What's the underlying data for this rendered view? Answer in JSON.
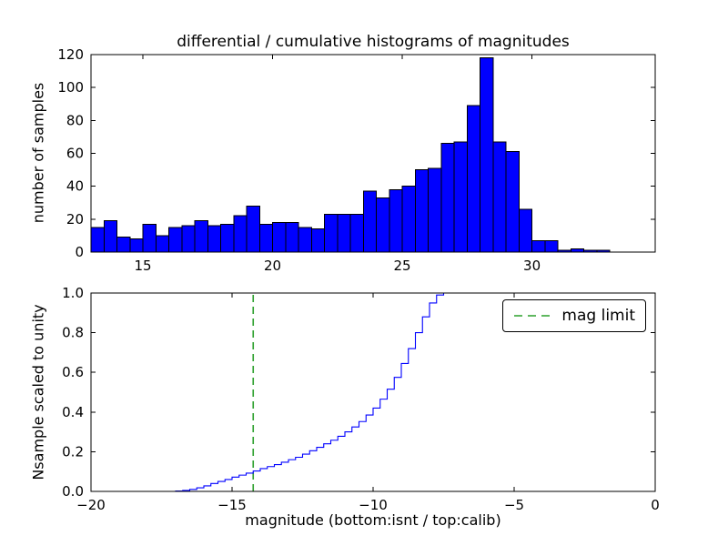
{
  "figure": {
    "background": "#ffffff"
  },
  "chart_data": [
    {
      "type": "bar",
      "name": "differential histogram of magnitudes",
      "title": "differential / cumulative histograms of magnitudes",
      "xlabel": "",
      "ylabel": "number of samples",
      "xlim": [
        13.0,
        34.75
      ],
      "ylim": [
        0,
        120
      ],
      "xticks": [
        15,
        20,
        25,
        30
      ],
      "xtick_labels": [
        "15",
        "20",
        "25",
        "30"
      ],
      "yticks": [
        0,
        20,
        40,
        60,
        80,
        100,
        120
      ],
      "ytick_labels": [
        "0",
        "20",
        "40",
        "60",
        "80",
        "100",
        "120"
      ],
      "grid": false,
      "bar_color": "#0000ff",
      "bar_edge_color": "#000000",
      "bin_start": 13.0,
      "bin_width": 0.5,
      "values": [
        15,
        19,
        9,
        8,
        17,
        10,
        15,
        16,
        19,
        16,
        17,
        22,
        28,
        17,
        18,
        18,
        15,
        14,
        23,
        23,
        23,
        37,
        33,
        38,
        40,
        50,
        51,
        66,
        67,
        89,
        118,
        67,
        61,
        26,
        7,
        7,
        1,
        2,
        1,
        1
      ]
    },
    {
      "type": "line",
      "name": "cumulative histogram scaled to unity",
      "xlabel": "magnitude (bottom:isnt / top:calib)",
      "ylabel": "Nsample scaled to unity",
      "xlim": [
        -20,
        0
      ],
      "ylim": [
        0.0,
        1.0
      ],
      "xticks": [
        -20,
        -15,
        -10,
        -5,
        0
      ],
      "xtick_labels": [
        "−20",
        "−15",
        "−10",
        "−5",
        "0"
      ],
      "yticks": [
        0.0,
        0.2,
        0.4,
        0.6,
        0.8,
        1.0
      ],
      "ytick_labels": [
        "0.0",
        "0.2",
        "0.4",
        "0.6",
        "0.8",
        "1.0"
      ],
      "grid": false,
      "line_color": "#0000ff",
      "line_style": "steps",
      "step_points": [
        [
          -20.0,
          0.0
        ],
        [
          -17.0,
          0.002
        ],
        [
          -16.75,
          0.005
        ],
        [
          -16.5,
          0.01
        ],
        [
          -16.25,
          0.018
        ],
        [
          -16.0,
          0.028
        ],
        [
          -15.75,
          0.04
        ],
        [
          -15.5,
          0.05
        ],
        [
          -15.25,
          0.06
        ],
        [
          -15.0,
          0.072
        ],
        [
          -14.75,
          0.082
        ],
        [
          -14.5,
          0.092
        ],
        [
          -14.25,
          0.103
        ],
        [
          -14.0,
          0.115
        ],
        [
          -13.75,
          0.125
        ],
        [
          -13.5,
          0.135
        ],
        [
          -13.25,
          0.147
        ],
        [
          -13.0,
          0.16
        ],
        [
          -12.75,
          0.172
        ],
        [
          -12.5,
          0.188
        ],
        [
          -12.25,
          0.205
        ],
        [
          -12.0,
          0.222
        ],
        [
          -11.75,
          0.24
        ],
        [
          -11.5,
          0.258
        ],
        [
          -11.25,
          0.278
        ],
        [
          -11.0,
          0.3
        ],
        [
          -10.75,
          0.325
        ],
        [
          -10.5,
          0.352
        ],
        [
          -10.25,
          0.385
        ],
        [
          -10.0,
          0.42
        ],
        [
          -9.75,
          0.465
        ],
        [
          -9.5,
          0.515
        ],
        [
          -9.25,
          0.575
        ],
        [
          -9.0,
          0.645
        ],
        [
          -8.75,
          0.72
        ],
        [
          -8.5,
          0.8
        ],
        [
          -8.25,
          0.88
        ],
        [
          -8.0,
          0.95
        ],
        [
          -7.75,
          0.99
        ],
        [
          -7.5,
          1.0
        ],
        [
          0.0,
          1.0
        ]
      ],
      "mag_limit_line": {
        "x": -14.25,
        "color": "#2ca02c",
        "style": "dashed"
      },
      "legend": {
        "label": "mag limit",
        "position": "upper right"
      }
    }
  ]
}
